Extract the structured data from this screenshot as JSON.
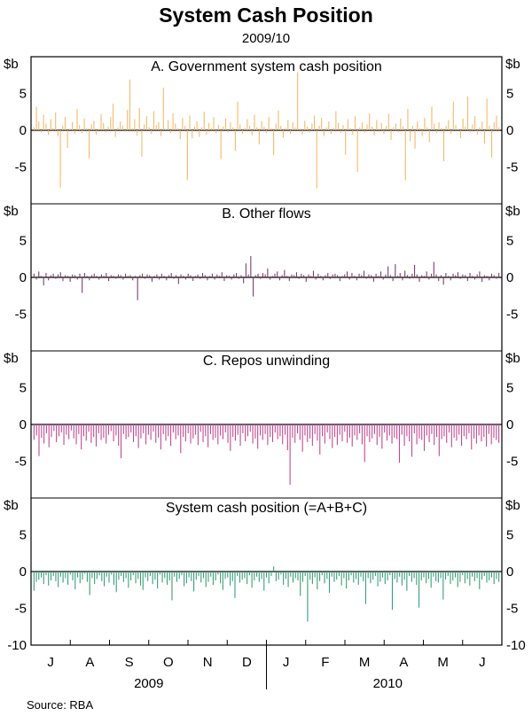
{
  "title": "System Cash Position",
  "subtitle": "2009/10",
  "source": "Source: RBA",
  "chart_data": {
    "type": "bar",
    "units": "$b",
    "ylim": [
      -10,
      10
    ],
    "yticks_left": [
      "5",
      "0",
      "-5"
    ],
    "yticks_right": [
      "5",
      "0",
      "-5"
    ],
    "bottom_tick_left": "-10",
    "bottom_tick_right": "-10",
    "months": [
      "J",
      "A",
      "S",
      "O",
      "N",
      "D",
      "J",
      "F",
      "M",
      "A",
      "M",
      "J"
    ],
    "years": [
      "2009",
      "2010"
    ],
    "panels": [
      {
        "label": "A. Government system cash position",
        "color": "#f7b96a",
        "values": [
          0.4,
          3.2,
          1.2,
          -0.3,
          2.1,
          0.9,
          -0.6,
          1.5,
          0.3,
          2.4,
          -0.8,
          -7.8,
          0.6,
          1.8,
          -2.4,
          0.2,
          1.1,
          -0.5,
          2.9,
          0.7,
          -0.4,
          1.6,
          0.3,
          -3.8,
          0.8,
          1.3,
          -0.6,
          0.2,
          2.2,
          1.0,
          -0.3,
          0.5,
          1.8,
          3.6,
          -0.9,
          0.4,
          1.2,
          0.6,
          -0.2,
          2.8,
          6.9,
          0.3,
          1.5,
          -0.7,
          3.0,
          -3.6,
          0.8,
          1.9,
          0.4,
          -0.5,
          2.6,
          0.7,
          1.1,
          -0.8,
          5.8,
          0.2,
          1.4,
          -0.4,
          2.3,
          0.9,
          0.3,
          -1.2,
          1.7,
          0.6,
          -6.8,
          2.0,
          -1.1,
          0.5,
          1.2,
          -0.9,
          0.4,
          2.5,
          -0.6,
          1.0,
          0.3,
          1.8,
          -0.4,
          0.7,
          -3.9,
          0.5,
          1.6,
          -0.3,
          1.1,
          0.4,
          -2.8,
          3.9,
          0.8,
          -0.5,
          0.3,
          1.5,
          0.6,
          -0.7,
          2.1,
          0.4,
          -1.9,
          1.2,
          0.5,
          -0.4,
          1.8,
          0.3,
          -3.4,
          0.9,
          2.7,
          0.6,
          -1.0,
          0.3,
          1.4,
          -0.5,
          1.1,
          0.4,
          7.9,
          0.2,
          -0.6,
          1.3,
          0.5,
          -0.3,
          0.9,
          2.0,
          -7.9,
          0.6,
          1.7,
          -0.8,
          0.4,
          1.2,
          -0.5,
          0.3,
          2.6,
          1.0,
          -0.4,
          0.7,
          -3.3,
          1.5,
          0.3,
          -0.6,
          1.9,
          -5.7,
          0.4,
          1.1,
          -0.3,
          0.8,
          2.3,
          0.5,
          -0.7,
          1.4,
          0.2,
          1.0,
          -0.5,
          0.6,
          2.2,
          -1.3,
          0.4,
          0.9,
          -0.3,
          1.6,
          0.5,
          -6.8,
          2.9,
          -1.5,
          0.6,
          -2.5,
          1.2,
          0.3,
          -0.8,
          1.7,
          0.4,
          -1.6,
          3.2,
          0.9,
          -0.4,
          1.1,
          0.3,
          -4.2,
          0.6,
          1.4,
          -0.5,
          3.9,
          0.7,
          0.2,
          -1.1,
          1.6,
          0.5,
          4.6,
          -0.3,
          0.8,
          1.9,
          -0.6,
          0.4,
          1.2,
          -1.8,
          4.3,
          0.6,
          -3.7,
          1.1,
          2.0,
          0.4
        ]
      },
      {
        "label": "B. Other flows",
        "color": "#7e3e72",
        "values": [
          0.5,
          -0.3,
          0.8,
          0.2,
          -1.1,
          0.6,
          -0.4,
          0.3,
          0.5,
          -0.2,
          0.4,
          0.7,
          -0.5,
          0.3,
          0.2,
          -0.6,
          0.4,
          0.3,
          -0.3,
          0.5,
          -2.1,
          0.6,
          0.2,
          -0.4,
          0.3,
          0.5,
          0.2,
          -0.3,
          0.4,
          0.2,
          0.6,
          -0.5,
          0.3,
          0.2,
          -0.2,
          0.4,
          0.3,
          -0.3,
          0.5,
          0.2,
          0.3,
          -0.4,
          0.2,
          -3.1,
          0.3,
          0.5,
          -0.2,
          0.4,
          0.3,
          -0.6,
          0.2,
          0.4,
          -0.3,
          0.5,
          0.2,
          -0.4,
          0.3,
          0.6,
          -0.2,
          0.3,
          -0.9,
          0.4,
          0.2,
          -0.3,
          0.5,
          0.3,
          -0.5,
          0.2,
          0.4,
          -0.2,
          0.6,
          0.3,
          -0.4,
          0.2,
          0.5,
          -0.3,
          0.4,
          0.2,
          0.7,
          -0.5,
          0.3,
          0.2,
          -0.3,
          0.4,
          0.6,
          -0.2,
          0.3,
          -0.8,
          1.9,
          0.4,
          2.9,
          -2.6,
          0.3,
          0.5,
          -0.2,
          0.6,
          0.4,
          1.2,
          -0.3,
          0.2,
          0.5,
          0.8,
          -0.4,
          0.3,
          1.0,
          0.2,
          -0.5,
          0.4,
          0.3,
          0.7,
          -0.2,
          0.5,
          0.3,
          -0.6,
          0.4,
          0.2,
          0.9,
          -0.3,
          0.5,
          0.2,
          -0.4,
          0.3,
          0.6,
          -0.2,
          0.4,
          0.5,
          0.3,
          -0.5,
          0.2,
          0.4,
          0.8,
          -0.3,
          0.6,
          0.2,
          -0.4,
          0.5,
          0.3,
          0.9,
          -0.2,
          0.4,
          0.3,
          -0.6,
          0.5,
          0.2,
          0.8,
          -0.3,
          0.4,
          1.5,
          0.3,
          -0.5,
          1.8,
          0.2,
          0.6,
          -0.4,
          0.9,
          0.3,
          -0.2,
          0.5,
          1.7,
          0.4,
          -0.6,
          0.3,
          0.2,
          0.8,
          -0.3,
          0.5,
          2.1,
          0.4,
          -0.5,
          0.3,
          -1.0,
          0.6,
          0.2,
          -0.4,
          0.5,
          0.3,
          0.7,
          -0.2,
          0.4,
          0.3,
          -0.5,
          0.6,
          0.2,
          -0.3,
          0.4,
          0.8,
          -0.6,
          0.3,
          0.2,
          -0.4,
          0.5,
          0.3,
          -0.2,
          0.6
        ]
      },
      {
        "label": "C. Repos unwinding",
        "color": "#c24a93",
        "values": [
          -2.1,
          -1.5,
          -4.3,
          -1.8,
          -2.6,
          -1.2,
          -3.1,
          -1.7,
          -0.9,
          -2.4,
          -1.6,
          -1.1,
          -2.8,
          -1.4,
          -2.0,
          -0.8,
          -1.9,
          -2.7,
          -1.3,
          -3.4,
          -1.6,
          -2.2,
          -1.0,
          -2.5,
          -1.7,
          -3.0,
          -1.2,
          -2.1,
          -1.8,
          -2.6,
          -1.4,
          -0.9,
          -2.3,
          -1.5,
          -2.9,
          -4.6,
          -1.3,
          -2.0,
          -1.7,
          -1.1,
          -2.4,
          -1.6,
          -3.2,
          -1.9,
          -1.2,
          -2.7,
          -1.4,
          -2.1,
          -1.0,
          -2.5,
          -1.8,
          -3.4,
          -1.3,
          -2.2,
          -1.6,
          -2.9,
          -1.1,
          -2.0,
          -1.5,
          -3.9,
          -1.7,
          -2.3,
          -1.2,
          -2.6,
          -1.9,
          -1.4,
          -2.8,
          -1.0,
          -2.4,
          -1.6,
          -3.1,
          -1.3,
          -2.1,
          -1.8,
          -2.7,
          -1.5,
          -2.0,
          -1.1,
          -2.5,
          -3.6,
          -1.7,
          -2.2,
          -1.4,
          -2.9,
          -1.2,
          -2.3,
          -1.6,
          -1.0,
          -2.6,
          -1.9,
          -3.3,
          -1.5,
          -2.1,
          -1.3,
          -2.8,
          -1.7,
          -2.4,
          -1.1,
          -2.0,
          -1.6,
          -2.7,
          -1.4,
          -3.5,
          -8.2,
          -1.8,
          -2.5,
          -1.2,
          -2.1,
          -3.7,
          -1.5,
          -2.4,
          -1.9,
          -2.9,
          -1.3,
          -2.2,
          -4.1,
          -1.6,
          -2.6,
          -1.1,
          -2.0,
          -3.2,
          -1.7,
          -2.8,
          -1.4,
          -2.3,
          -1.0,
          -2.5,
          -1.8,
          -3.0,
          -1.5,
          -2.1,
          -1.2,
          -2.7,
          -5.1,
          -1.6,
          -2.4,
          -1.9,
          -1.3,
          -2.8,
          -1.7,
          -3.3,
          -1.1,
          -2.2,
          -1.5,
          -2.6,
          -1.8,
          -2.0,
          -5.2,
          -1.4,
          -2.9,
          -1.6,
          -2.3,
          -4.4,
          -1.2,
          -2.7,
          -1.9,
          -2.1,
          -3.6,
          -1.5,
          -2.4,
          -1.3,
          -2.8,
          -1.7,
          -4.3,
          -2.0,
          -1.6,
          -2.5,
          -1.1,
          -3.1,
          -1.8,
          -2.2,
          -1.4,
          -2.9,
          -1.6,
          -2.0,
          -1.2,
          -3.4,
          -1.9,
          -2.6,
          -1.5,
          -2.3,
          -1.7,
          -3.0,
          -1.3,
          -2.7,
          -1.8,
          -2.1,
          -2.5
        ]
      },
      {
        "label": "System cash position (=A+B+C)",
        "color": "#3a9e78",
        "values": [
          -2.6,
          -1.4,
          -1.1,
          -0.8,
          -1.7,
          -0.5,
          -1.9,
          -1.2,
          -0.6,
          -1.3,
          -2.1,
          -0.7,
          -1.5,
          -0.9,
          -1.8,
          -0.4,
          -1.2,
          -2.4,
          -0.8,
          -1.6,
          -1.1,
          -0.3,
          -1.4,
          -3.2,
          -0.9,
          -1.7,
          -1.0,
          -0.5,
          -1.3,
          -2.0,
          -0.7,
          -1.5,
          -0.4,
          -1.8,
          -2.8,
          -1.1,
          -0.6,
          -1.4,
          -0.9,
          -2.2,
          -1.2,
          -0.5,
          -1.6,
          -1.0,
          -1.9,
          -2.5,
          -0.8,
          -1.3,
          -0.6,
          -1.7,
          -1.1,
          -2.3,
          -0.4,
          -1.5,
          -0.9,
          -1.8,
          -1.2,
          -3.9,
          -0.7,
          -1.4,
          -1.0,
          -0.5,
          -2.0,
          -1.6,
          -0.8,
          -1.3,
          -2.7,
          -1.1,
          -0.6,
          -1.5,
          -0.9,
          -2.1,
          -1.4,
          -0.7,
          -1.8,
          -1.2,
          -0.4,
          -1.6,
          -2.5,
          -1.0,
          -0.8,
          -1.9,
          -1.3,
          -3.6,
          -0.6,
          -1.5,
          -1.1,
          -0.9,
          -1.7,
          -0.5,
          -2.2,
          -1.2,
          -0.7,
          -1.4,
          -1.0,
          -2.6,
          -0.8,
          -1.6,
          -0.6,
          0.7,
          -1.3,
          -1.1,
          -0.4,
          -1.8,
          -1.0,
          -2.1,
          -0.7,
          -1.5,
          -0.9,
          -1.2,
          -3.3,
          -1.4,
          -0.6,
          -6.8,
          -1.1,
          -1.7,
          -0.8,
          -2.4,
          -1.3,
          -0.5,
          -1.6,
          -1.0,
          -2.9,
          -0.7,
          -1.4,
          -1.1,
          -0.6,
          -1.9,
          -0.9,
          -2.3,
          -1.2,
          -0.5,
          -1.5,
          -1.0,
          -1.8,
          -0.7,
          -1.3,
          -4.4,
          -0.9,
          -1.6,
          -1.1,
          -0.6,
          -2.0,
          -1.4,
          -0.8,
          -1.7,
          -1.2,
          -0.5,
          -5.2,
          -1.0,
          -1.5,
          -0.7,
          -1.9,
          -1.1,
          -2.6,
          -0.6,
          -1.4,
          -0.9,
          -1.8,
          -4.9,
          -1.2,
          -0.8,
          -1.6,
          -1.0,
          -2.2,
          -0.7,
          -1.3,
          -1.5,
          -0.9,
          -3.8,
          -1.1,
          -0.6,
          -1.7,
          -1.2,
          -0.8,
          -2.1,
          -1.4,
          -0.5,
          -1.6,
          -1.0,
          -1.9,
          -0.7,
          -1.3,
          -0.9,
          -2.4,
          -1.1,
          -0.6,
          -1.5,
          -1.2,
          -0.8,
          -1.7,
          -1.0,
          -1.4
        ]
      }
    ]
  }
}
